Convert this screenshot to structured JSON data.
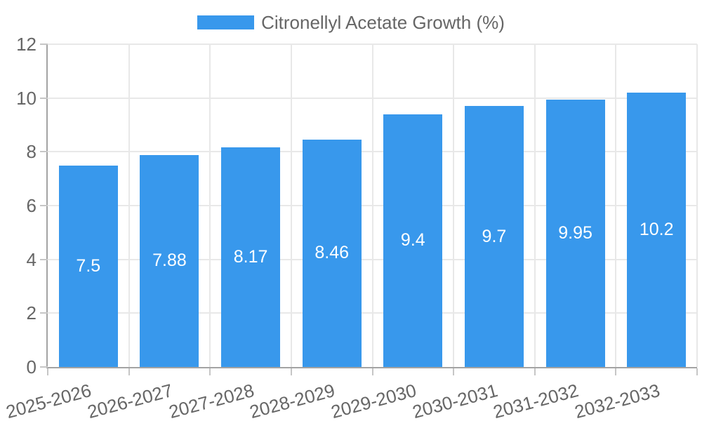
{
  "legend": {
    "label": "Citronellyl Acetate Growth (%)"
  },
  "chart_data": {
    "type": "bar",
    "title": "",
    "xlabel": "",
    "ylabel": "",
    "categories": [
      "2025-2026",
      "2026-2027",
      "2027-2028",
      "2028-2029",
      "2029-2030",
      "2030-2031",
      "2031-2032",
      "2032-2033"
    ],
    "series": [
      {
        "name": "Citronellyl Acetate Growth (%)",
        "values": [
          7.5,
          7.88,
          8.17,
          8.46,
          9.4,
          9.7,
          9.95,
          10.2
        ]
      }
    ],
    "value_labels": [
      "7.5",
      "7.88",
      "8.17",
      "8.46",
      "9.4",
      "9.7",
      "9.95",
      "10.2"
    ],
    "ylim": [
      0,
      12
    ],
    "yticks": [
      0,
      2,
      4,
      6,
      8,
      10,
      12
    ],
    "grid": true,
    "legend_position": "top"
  },
  "colors": {
    "bar": "#3898ec",
    "axis_line": "#a3a3a3",
    "gridline": "#e8e8e8",
    "tick_mark": "#c6c6c6",
    "tick_text": "#666666",
    "value_label_text": "#ffffff",
    "legend_text": "#666666",
    "background": "#ffffff"
  }
}
